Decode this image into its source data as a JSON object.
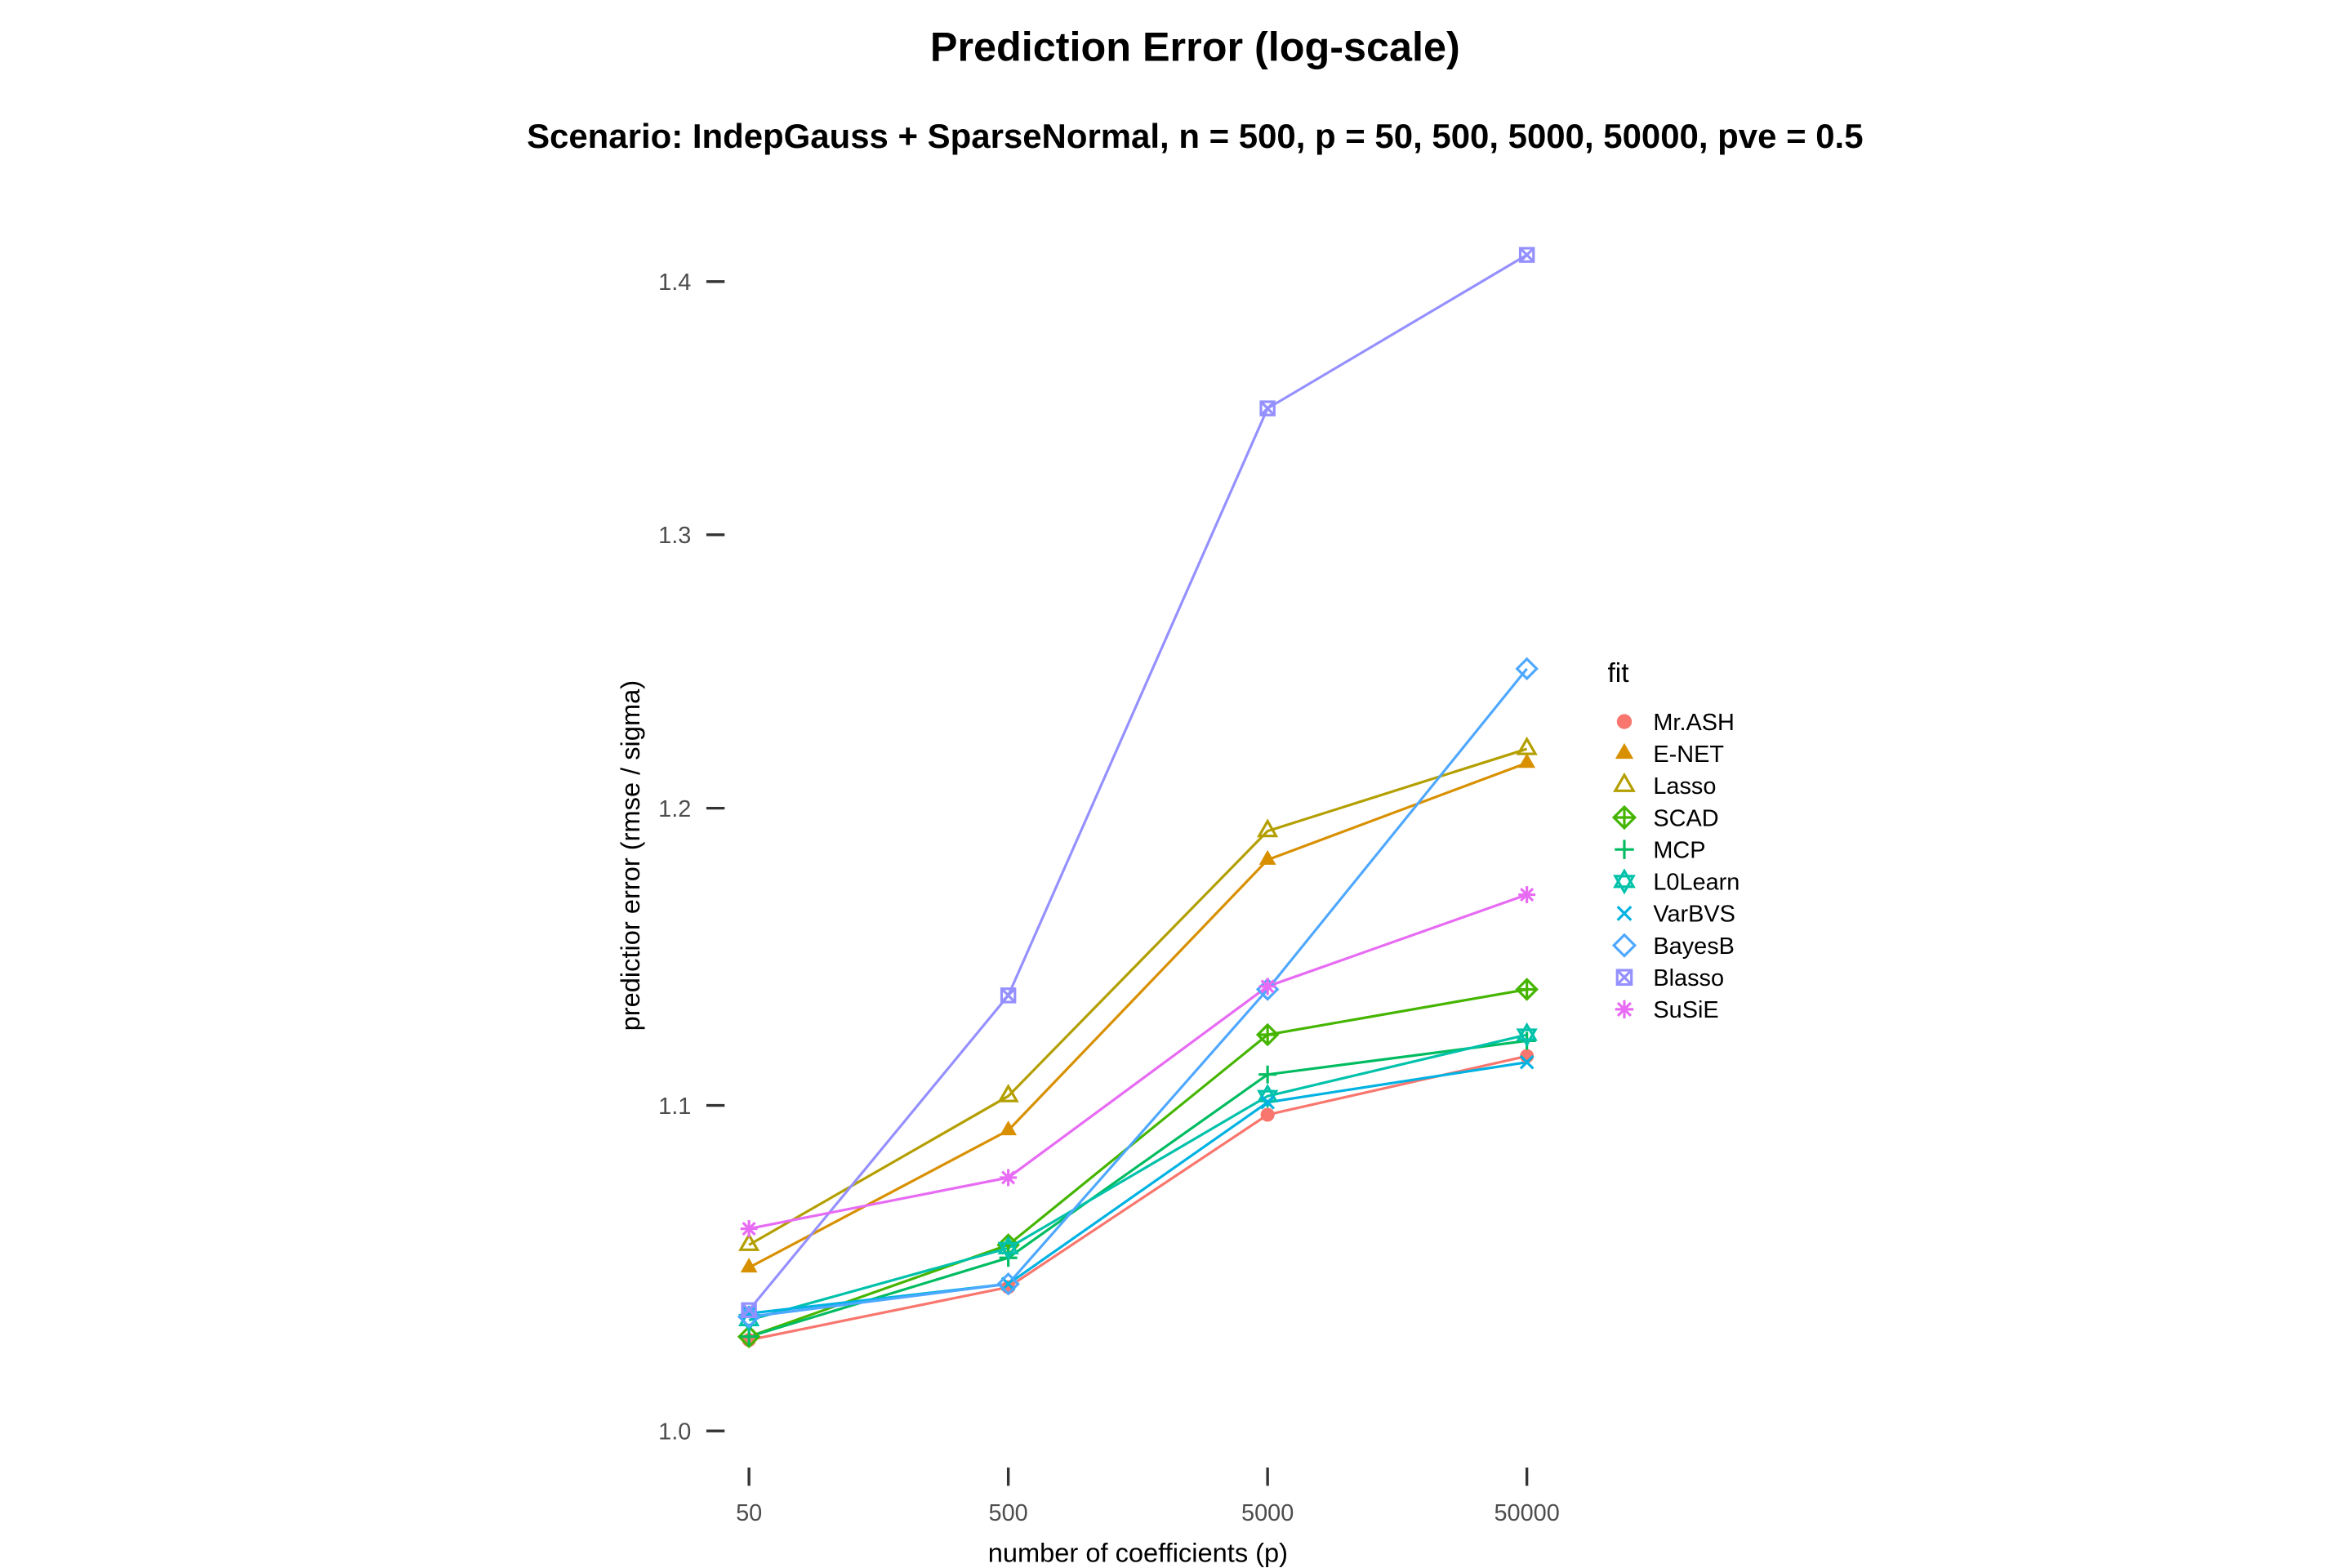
{
  "chart_data": {
    "type": "line",
    "title": "Prediction Error (log-scale)",
    "subtitle": "Scenario: IndepGauss + SparseNormal, n = 500, p = 50, 500, 5000, 50000, pve = 0.5",
    "xlabel": "number of coefficients (p)",
    "ylabel": "predictior error (rmse / sigma)",
    "x_scale": "log",
    "y_scale": "log",
    "x_values": [
      50,
      500,
      5000,
      50000
    ],
    "categories": [
      "50",
      "500",
      "5000",
      "50000"
    ],
    "yticks": [
      1.0,
      1.1,
      1.2,
      1.3,
      1.4
    ],
    "ytick_labels": [
      "1.0",
      "1.1",
      "1.2",
      "1.3",
      "1.4"
    ],
    "ylim": [
      0.99,
      1.425
    ],
    "grid": "off",
    "legend": {
      "title": "fit",
      "position": "right"
    },
    "series": [
      {
        "name": "Mr.ASH",
        "color": "#F8766D",
        "shape": "circle-filled",
        "values": [
          1.027,
          1.043,
          1.097,
          1.116
        ]
      },
      {
        "name": "E-NET",
        "color": "#D89000",
        "shape": "triangle-filled",
        "values": [
          1.049,
          1.092,
          1.182,
          1.216
        ]
      },
      {
        "name": "Lasso",
        "color": "#B39F00",
        "shape": "triangle-open",
        "values": [
          1.056,
          1.103,
          1.192,
          1.221
        ]
      },
      {
        "name": "SCAD",
        "color": "#45B500",
        "shape": "diamond-plus",
        "values": [
          1.028,
          1.056,
          1.123,
          1.138
        ]
      },
      {
        "name": "MCP",
        "color": "#00BC61",
        "shape": "plus",
        "values": [
          1.028,
          1.052,
          1.11,
          1.121
        ]
      },
      {
        "name": "L0Learn",
        "color": "#00C1A9",
        "shape": "triangle-up-down",
        "values": [
          1.033,
          1.055,
          1.103,
          1.123
        ]
      },
      {
        "name": "VarBVS",
        "color": "#00B2E2",
        "shape": "cross-x",
        "values": [
          1.035,
          1.044,
          1.101,
          1.114
        ]
      },
      {
        "name": "BayesB",
        "color": "#4FA8FF",
        "shape": "diamond-open",
        "values": [
          1.034,
          1.044,
          1.138,
          1.25
        ]
      },
      {
        "name": "Blasso",
        "color": "#9590FF",
        "shape": "square-x",
        "values": [
          1.036,
          1.136,
          1.349,
          1.411
        ]
      },
      {
        "name": "SuSiE",
        "color": "#E76BF3",
        "shape": "asterisk",
        "values": [
          1.061,
          1.077,
          1.139,
          1.17
        ]
      }
    ]
  },
  "theme": {
    "background": "#ffffff",
    "tick_label_color": "#4D4D4D",
    "tick_mark_color": "#333333",
    "text_color": "#000000"
  }
}
